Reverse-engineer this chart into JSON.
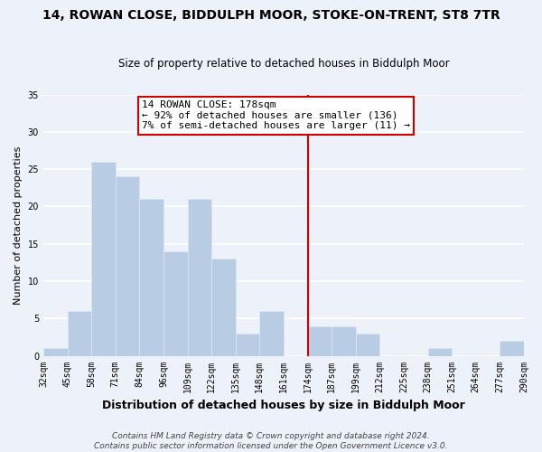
{
  "title": "14, ROWAN CLOSE, BIDDULPH MOOR, STOKE-ON-TRENT, ST8 7TR",
  "subtitle": "Size of property relative to detached houses in Biddulph Moor",
  "xlabel": "Distribution of detached houses by size in Biddulph Moor",
  "ylabel": "Number of detached properties",
  "bar_color": "#b8cce4",
  "bar_edge_color": "#dde8f4",
  "bins": [
    "32sqm",
    "45sqm",
    "58sqm",
    "71sqm",
    "84sqm",
    "96sqm",
    "109sqm",
    "122sqm",
    "135sqm",
    "148sqm",
    "161sqm",
    "174sqm",
    "187sqm",
    "199sqm",
    "212sqm",
    "225sqm",
    "238sqm",
    "251sqm",
    "264sqm",
    "277sqm",
    "290sqm"
  ],
  "values": [
    1,
    6,
    26,
    24,
    21,
    14,
    21,
    13,
    3,
    6,
    0,
    4,
    4,
    3,
    0,
    0,
    1,
    0,
    0,
    2
  ],
  "ylim": [
    0,
    35
  ],
  "yticks": [
    0,
    5,
    10,
    15,
    20,
    25,
    30,
    35
  ],
  "vline_color": "#cc0000",
  "vline_index": 11,
  "annotation_title": "14 ROWAN CLOSE: 178sqm",
  "annotation_line1": "← 92% of detached houses are smaller (136)",
  "annotation_line2": "7% of semi-detached houses are larger (11) →",
  "annotation_box_color": "#ffffff",
  "annotation_box_edge": "#cc0000",
  "footer1": "Contains HM Land Registry data © Crown copyright and database right 2024.",
  "footer2": "Contains public sector information licensed under the Open Government Licence v3.0.",
  "background_color": "#edf1f9",
  "grid_color": "#ffffff",
  "title_fontsize": 10,
  "subtitle_fontsize": 8.5,
  "xlabel_fontsize": 9,
  "ylabel_fontsize": 8,
  "tick_fontsize": 7,
  "annotation_fontsize": 8,
  "footer_fontsize": 6.5
}
